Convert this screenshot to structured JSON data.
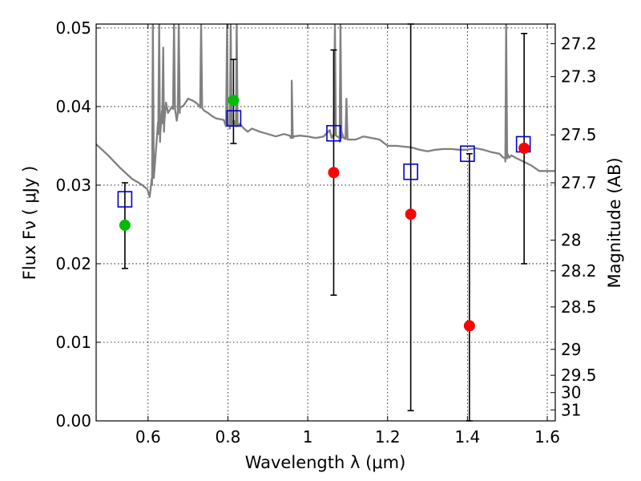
{
  "chart_data": {
    "type": "scatter",
    "xlabel": "Wavelength  λ (μm)",
    "ylabel": "Flux  Fν  ( μJy )",
    "y2label": "Magnitude (AB)",
    "xlim": [
      0.47,
      1.62
    ],
    "ylim": [
      0.0,
      0.0505
    ],
    "grid": true,
    "x_ticks": [
      0.6,
      0.8,
      1.0,
      1.2,
      1.4,
      1.6
    ],
    "x_tick_labels": [
      "0.6",
      "0.8",
      "1",
      "1.2",
      "1.4",
      "1.6"
    ],
    "y_ticks": [
      0.0,
      0.01,
      0.02,
      0.03,
      0.04,
      0.05
    ],
    "y_tick_labels": [
      "0.00",
      "0.01",
      "0.02",
      "0.03",
      "0.04",
      "0.05"
    ],
    "y2_ticks": [
      {
        "label": "27.2",
        "flux": 0.048
      },
      {
        "label": "27.3",
        "flux": 0.0438
      },
      {
        "label": "27.5",
        "flux": 0.0364
      },
      {
        "label": "27.7",
        "flux": 0.0303
      },
      {
        "label": "28",
        "flux": 0.023
      },
      {
        "label": "28.2",
        "flux": 0.0191
      },
      {
        "label": "28.5",
        "flux": 0.0145
      },
      {
        "label": "29",
        "flux": 0.0091
      },
      {
        "label": "29.5",
        "flux": 0.0058
      },
      {
        "label": "30",
        "flux": 0.0036
      },
      {
        "label": "31",
        "flux": 0.0014
      }
    ],
    "colors": {
      "model": "#808080",
      "detection": "#ff0000",
      "secondary": "#00bb00",
      "model_photometry": "#0000cc",
      "errorbar": "#000000",
      "grid": "#000000"
    },
    "series": [
      {
        "kind": "model_spectrum",
        "color": "#808080",
        "x": [
          0.47,
          0.5,
          0.53,
          0.56,
          0.58,
          0.598,
          0.604,
          0.61,
          0.62,
          0.625,
          0.63,
          0.635,
          0.64,
          0.645,
          0.65,
          0.66,
          0.668,
          0.672,
          0.68,
          0.69,
          0.7,
          0.71,
          0.72,
          0.73,
          0.74,
          0.75,
          0.76,
          0.77,
          0.78,
          0.79,
          0.795,
          0.8,
          0.805,
          0.81,
          0.815,
          0.82,
          0.83,
          0.84,
          0.85,
          0.86,
          0.87,
          0.88,
          0.9,
          0.92,
          0.94,
          0.955,
          0.96,
          0.965,
          0.98,
          1.0,
          1.02,
          1.04,
          1.055,
          1.06,
          1.065,
          1.08,
          1.085,
          1.09,
          1.1,
          1.12,
          1.14,
          1.16,
          1.18,
          1.2,
          1.22,
          1.24,
          1.26,
          1.28,
          1.3,
          1.32,
          1.34,
          1.36,
          1.38,
          1.4,
          1.42,
          1.44,
          1.46,
          1.48,
          1.49,
          1.495,
          1.5,
          1.505,
          1.51,
          1.52,
          1.54,
          1.56,
          1.58,
          1.6,
          1.62
        ],
        "y": [
          0.0352,
          0.0338,
          0.0322,
          0.0308,
          0.0302,
          0.0295,
          0.0285,
          0.03,
          0.0345,
          0.038,
          0.0355,
          0.0395,
          0.0368,
          0.0405,
          0.0392,
          0.04,
          0.0395,
          0.0382,
          0.0398,
          0.0402,
          0.041,
          0.0408,
          0.0405,
          0.04,
          0.0395,
          0.0392,
          0.0388,
          0.0385,
          0.0384,
          0.0383,
          0.0375,
          0.0378,
          0.0372,
          0.038,
          0.0382,
          0.0375,
          0.0378,
          0.0372,
          0.0368,
          0.0372,
          0.037,
          0.0368,
          0.0365,
          0.0362,
          0.0365,
          0.0363,
          0.036,
          0.0362,
          0.0363,
          0.0362,
          0.036,
          0.0362,
          0.037,
          0.036,
          0.0365,
          0.0355,
          0.0368,
          0.036,
          0.0358,
          0.0358,
          0.0362,
          0.036,
          0.0358,
          0.035,
          0.035,
          0.0349,
          0.0348,
          0.0345,
          0.0343,
          0.0345,
          0.0346,
          0.0346,
          0.0345,
          0.0345,
          0.0347,
          0.0345,
          0.0342,
          0.034,
          0.0335,
          0.033,
          0.034,
          0.0335,
          0.0338,
          0.0335,
          0.033,
          0.0325,
          0.0318,
          0.0318,
          0.0318
        ],
        "emission_lines": [
          {
            "x": 0.612,
            "peak": 0.0505
          },
          {
            "x": 0.628,
            "peak": 0.0505
          },
          {
            "x": 0.638,
            "peak": 0.0475
          },
          {
            "x": 0.665,
            "peak": 0.0505
          },
          {
            "x": 0.677,
            "peak": 0.0505
          },
          {
            "x": 0.733,
            "peak": 0.0505
          },
          {
            "x": 0.798,
            "peak": 0.0505
          },
          {
            "x": 0.807,
            "peak": 0.0505
          },
          {
            "x": 0.822,
            "peak": 0.0505
          },
          {
            "x": 0.96,
            "peak": 0.0433
          },
          {
            "x": 1.068,
            "peak": 0.0505
          },
          {
            "x": 1.082,
            "peak": 0.0505
          },
          {
            "x": 1.097,
            "peak": 0.041
          },
          {
            "x": 1.497,
            "peak": 0.0505
          }
        ]
      },
      {
        "kind": "measured_flux",
        "color": "#ff0000",
        "points": [
          {
            "x": 1.065,
            "y": 0.0316,
            "yerr_low": 0.016,
            "yerr_high": 0.0472
          },
          {
            "x": 1.258,
            "y": 0.0263,
            "yerr_low": 0.0013,
            "yerr_high": 0.0505
          },
          {
            "x": 1.405,
            "y": 0.0121,
            "yerr_low": 0.0,
            "yerr_high": 0.034
          },
          {
            "x": 1.542,
            "y": 0.0347,
            "yerr_low": 0.02,
            "yerr_high": 0.0493
          }
        ]
      },
      {
        "kind": "measured_flux_secondary",
        "color": "#00bb00",
        "points": [
          {
            "x": 0.542,
            "y": 0.0249,
            "yerr_low": 0.0194,
            "yerr_high": 0.0303
          },
          {
            "x": 0.814,
            "y": 0.0408,
            "yerr_low": 0.0353,
            "yerr_high": 0.046
          }
        ]
      },
      {
        "kind": "model_photometry",
        "color": "#0000cc",
        "points": [
          {
            "x": 0.542,
            "y": 0.0282
          },
          {
            "x": 0.815,
            "y": 0.0385
          },
          {
            "x": 1.065,
            "y": 0.0366
          },
          {
            "x": 1.258,
            "y": 0.0317
          },
          {
            "x": 1.4,
            "y": 0.034
          },
          {
            "x": 1.54,
            "y": 0.0352
          }
        ]
      }
    ]
  }
}
